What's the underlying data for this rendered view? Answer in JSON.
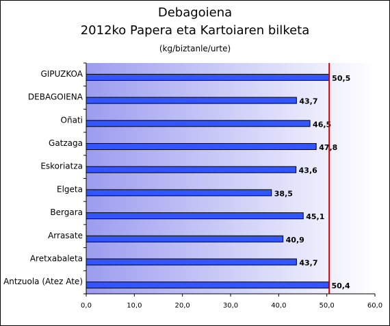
{
  "chart_data": {
    "type": "bar",
    "orientation": "horizontal",
    "title": "Debagoiena",
    "subtitle": "2012ko Papera eta Kartoiaren bilketa",
    "unit_label": "(kg/biztanle/urte)",
    "categories": [
      "GIPUZKOA",
      "DEBAGOIENA",
      "Oñati",
      "Gatzaga",
      "Eskoriatza",
      "Elgeta",
      "Bergara",
      "Arrasate",
      "Aretxabaleta",
      "Antzuola (Atez Ate)"
    ],
    "values": [
      50.5,
      43.7,
      46.5,
      47.8,
      43.6,
      38.5,
      45.1,
      40.9,
      43.7,
      50.4
    ],
    "value_labels": [
      "50,5",
      "43,7",
      "46,5",
      "47,8",
      "43,6",
      "38,5",
      "45,1",
      "40,9",
      "43,7",
      "50,4"
    ],
    "xlim": [
      0,
      60
    ],
    "xticks": [
      "0,0",
      "10,0",
      "20,0",
      "30,0",
      "40,0",
      "50,0",
      "60,0"
    ],
    "reference_line": 50.5,
    "bar_color": "#3355ff",
    "reference_color": "#cc0000",
    "grid": false,
    "legend": "none"
  }
}
